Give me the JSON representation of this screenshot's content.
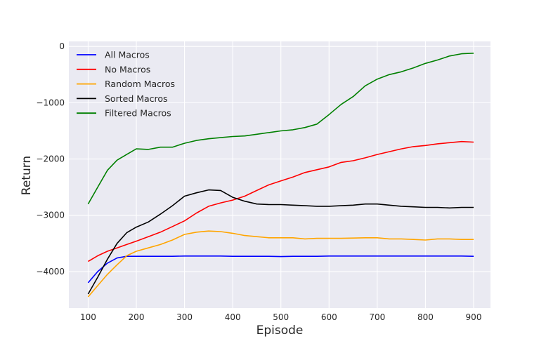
{
  "chart_data": {
    "type": "line",
    "title": "",
    "xlabel": "Episode",
    "ylabel": "Return",
    "xlim": [
      60,
      935
    ],
    "ylim": [
      -4650,
      90
    ],
    "xticks": [
      100,
      200,
      300,
      400,
      500,
      600,
      700,
      800,
      900
    ],
    "yticks": [
      0,
      -1000,
      -2000,
      -3000,
      -4000
    ],
    "ytick_labels": [
      "0",
      "−1000",
      "−2000",
      "−3000",
      "−4000"
    ],
    "grid": true,
    "legend_position": "upper-left",
    "x": [
      100,
      120,
      140,
      160,
      180,
      200,
      225,
      250,
      275,
      300,
      325,
      350,
      375,
      400,
      425,
      450,
      475,
      500,
      525,
      550,
      575,
      600,
      625,
      650,
      675,
      700,
      725,
      750,
      775,
      800,
      825,
      850,
      875,
      900
    ],
    "series": [
      {
        "name": "All Macros",
        "color": "#0000ff",
        "values": [
          -4200,
          -4000,
          -3850,
          -3760,
          -3730,
          -3730,
          -3730,
          -3730,
          -3730,
          -3725,
          -3725,
          -3725,
          -3725,
          -3730,
          -3730,
          -3730,
          -3730,
          -3735,
          -3730,
          -3730,
          -3730,
          -3725,
          -3725,
          -3725,
          -3725,
          -3725,
          -3725,
          -3725,
          -3725,
          -3725,
          -3725,
          -3725,
          -3725,
          -3730
        ]
      },
      {
        "name": "No Macros",
        "color": "#ff0000",
        "values": [
          -3820,
          -3720,
          -3640,
          -3580,
          -3520,
          -3460,
          -3380,
          -3300,
          -3200,
          -3100,
          -2960,
          -2840,
          -2780,
          -2730,
          -2660,
          -2560,
          -2460,
          -2390,
          -2320,
          -2240,
          -2190,
          -2140,
          -2060,
          -2030,
          -1980,
          -1920,
          -1870,
          -1820,
          -1780,
          -1760,
          -1730,
          -1710,
          -1690,
          -1700
        ]
      },
      {
        "name": "Random Macros",
        "color": "#ffa500",
        "values": [
          -4450,
          -4250,
          -4050,
          -3880,
          -3720,
          -3640,
          -3580,
          -3520,
          -3440,
          -3340,
          -3300,
          -3280,
          -3290,
          -3320,
          -3360,
          -3380,
          -3400,
          -3400,
          -3400,
          -3420,
          -3410,
          -3410,
          -3410,
          -3405,
          -3400,
          -3400,
          -3420,
          -3420,
          -3430,
          -3440,
          -3420,
          -3420,
          -3430,
          -3430
        ]
      },
      {
        "name": "Sorted Macros",
        "color": "#000000",
        "values": [
          -4400,
          -4100,
          -3780,
          -3500,
          -3310,
          -3210,
          -3120,
          -2980,
          -2830,
          -2660,
          -2600,
          -2550,
          -2560,
          -2680,
          -2750,
          -2800,
          -2810,
          -2810,
          -2820,
          -2830,
          -2840,
          -2840,
          -2830,
          -2820,
          -2800,
          -2800,
          -2820,
          -2840,
          -2850,
          -2860,
          -2860,
          -2870,
          -2860,
          -2860
        ]
      },
      {
        "name": "Filtered Macros",
        "color": "#008000",
        "values": [
          -2800,
          -2500,
          -2200,
          -2020,
          -1920,
          -1820,
          -1830,
          -1790,
          -1790,
          -1720,
          -1670,
          -1640,
          -1620,
          -1600,
          -1590,
          -1560,
          -1530,
          -1500,
          -1480,
          -1440,
          -1380,
          -1210,
          -1030,
          -890,
          -700,
          -580,
          -500,
          -450,
          -380,
          -300,
          -240,
          -170,
          -130,
          -120
        ]
      }
    ]
  }
}
